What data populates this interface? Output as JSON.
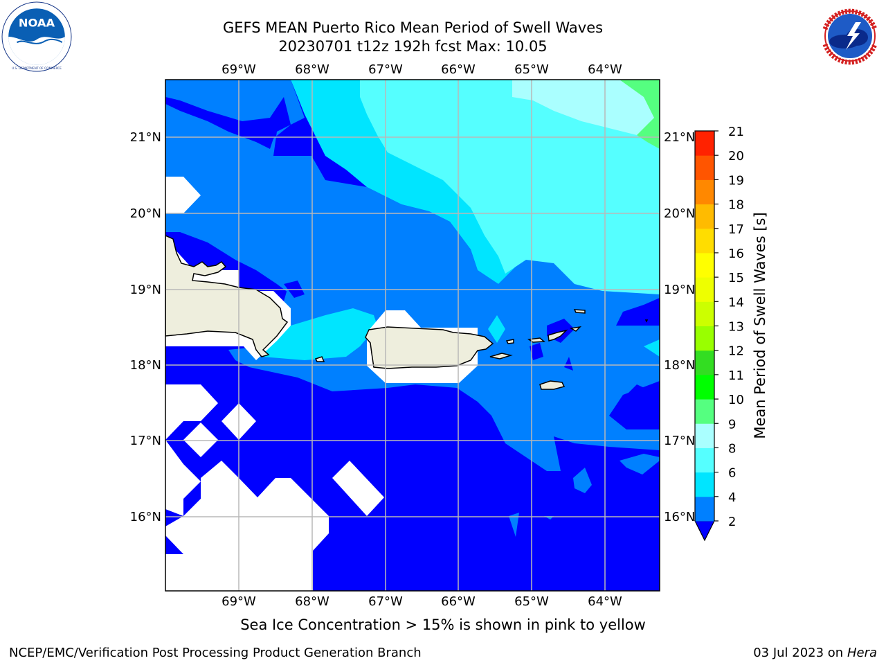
{
  "title": {
    "line1": "GEFS MEAN Puerto Rico Mean Period of Swell Waves",
    "line2": "20230701 t12z 192h fcst   Max: 10.05"
  },
  "logos": {
    "left": {
      "icon": "noaa-logo-icon",
      "text": "NOAA",
      "ring_text": "NATIONAL OCEANIC AND ATMOSPHERIC ADMINISTRATION · U.S. DEPARTMENT OF COMMERCE"
    },
    "right": {
      "icon": "nws-logo-icon",
      "ring_text": "NATIONAL WEATHER SERVICE"
    }
  },
  "map": {
    "lon_ticks": [
      "69°W",
      "68°W",
      "67°W",
      "66°W",
      "65°W",
      "64°W"
    ],
    "lat_ticks": [
      "21°N",
      "20°N",
      "19°N",
      "18°N",
      "17°N",
      "16°N"
    ],
    "lon_range": [
      -70.0,
      -63.25
    ],
    "lat_range": [
      15.0,
      21.75
    ],
    "grid": true,
    "land_color": "#eeeedd",
    "coast_color": "#000000"
  },
  "colorbar": {
    "label": "Mean Period of Swell Waves [s]",
    "ticks": [
      "2",
      "4",
      "6",
      "8",
      "9",
      "10",
      "11",
      "12",
      "13",
      "14",
      "15",
      "16",
      "17",
      "18",
      "19",
      "20",
      "21"
    ],
    "colors": [
      "#0000ff",
      "#0080ff",
      "#00e5ff",
      "#55ffff",
      "#aaffff",
      "#55ff80",
      "#00ff00",
      "#33dd22",
      "#99ff00",
      "#ccff00",
      "#eeff00",
      "#ffff00",
      "#ffdd00",
      "#ffbb00",
      "#ff8800",
      "#ff5500",
      "#ff2200",
      "#ff0000"
    ],
    "extend": "min"
  },
  "caption": "Sea Ice Concentration > 15% is shown in pink to yellow",
  "footer": {
    "left": "NCEP/EMC/Verification Post Processing Product Generation Branch",
    "right_prefix": "03 Jul 2023 on ",
    "right_machine": "Hera"
  }
}
